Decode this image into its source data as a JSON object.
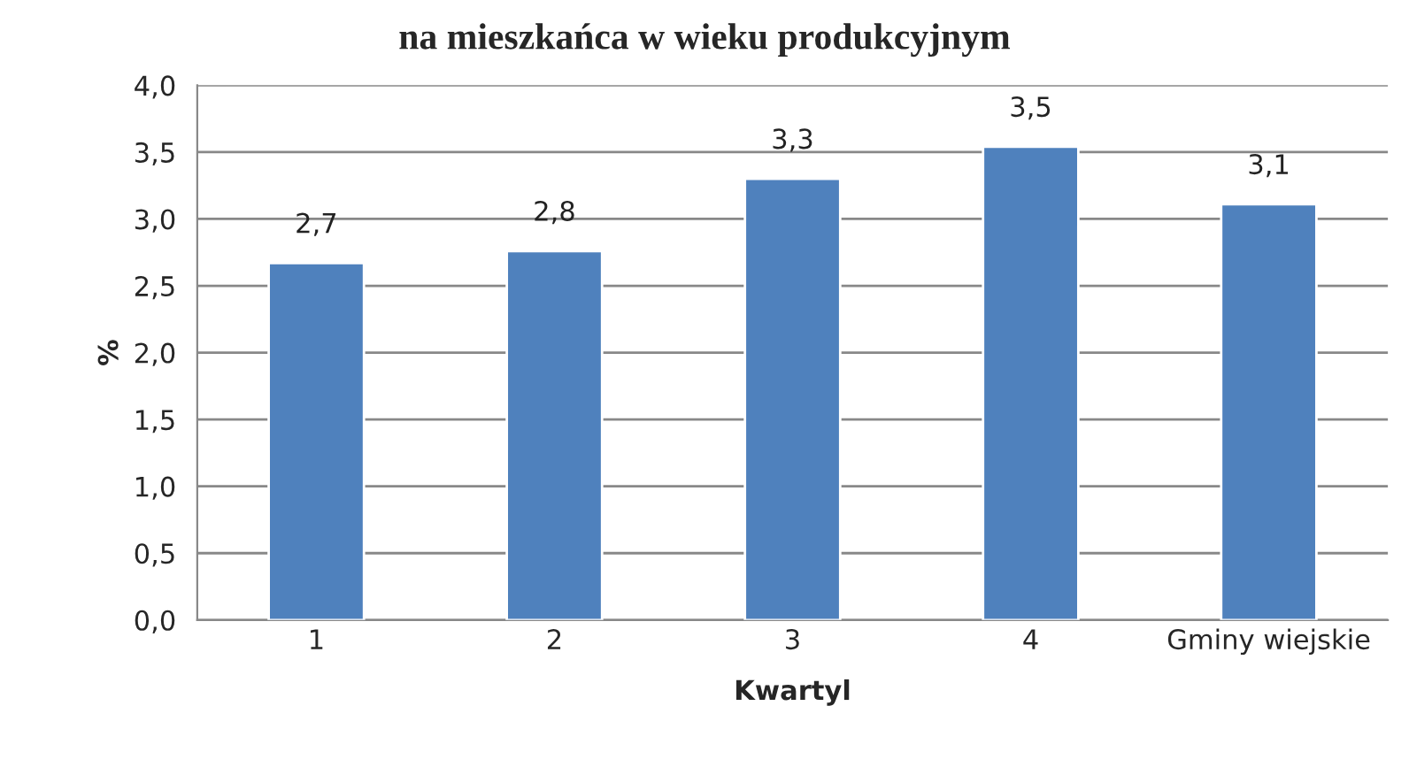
{
  "chart_data": {
    "type": "bar",
    "title": "na mieszkańca w wieku produkcyjnym",
    "xlabel": "Kwartyl",
    "ylabel": "%",
    "categories": [
      "1",
      "2",
      "3",
      "4",
      "Gminy wiejskie"
    ],
    "values": [
      2.67,
      2.76,
      3.3,
      3.54,
      3.11
    ],
    "value_labels": [
      "2,7",
      "2,8",
      "3,3",
      "3,5",
      "3,1"
    ],
    "color": "#4f81bd",
    "ylim": [
      0,
      4
    ],
    "yticks": [
      {
        "value": 0,
        "label": "0,0"
      },
      {
        "value": 0.5,
        "label": "0,5"
      },
      {
        "value": 1,
        "label": "1,0"
      },
      {
        "value": 1.5,
        "label": "1,5"
      },
      {
        "value": 2,
        "label": "2,0"
      },
      {
        "value": 2.5,
        "label": "2,5"
      },
      {
        "value": 3,
        "label": "3,0"
      },
      {
        "value": 3.5,
        "label": "3,5"
      },
      {
        "value": 4,
        "label": "4,0"
      }
    ],
    "grid": "y",
    "legend": false
  }
}
